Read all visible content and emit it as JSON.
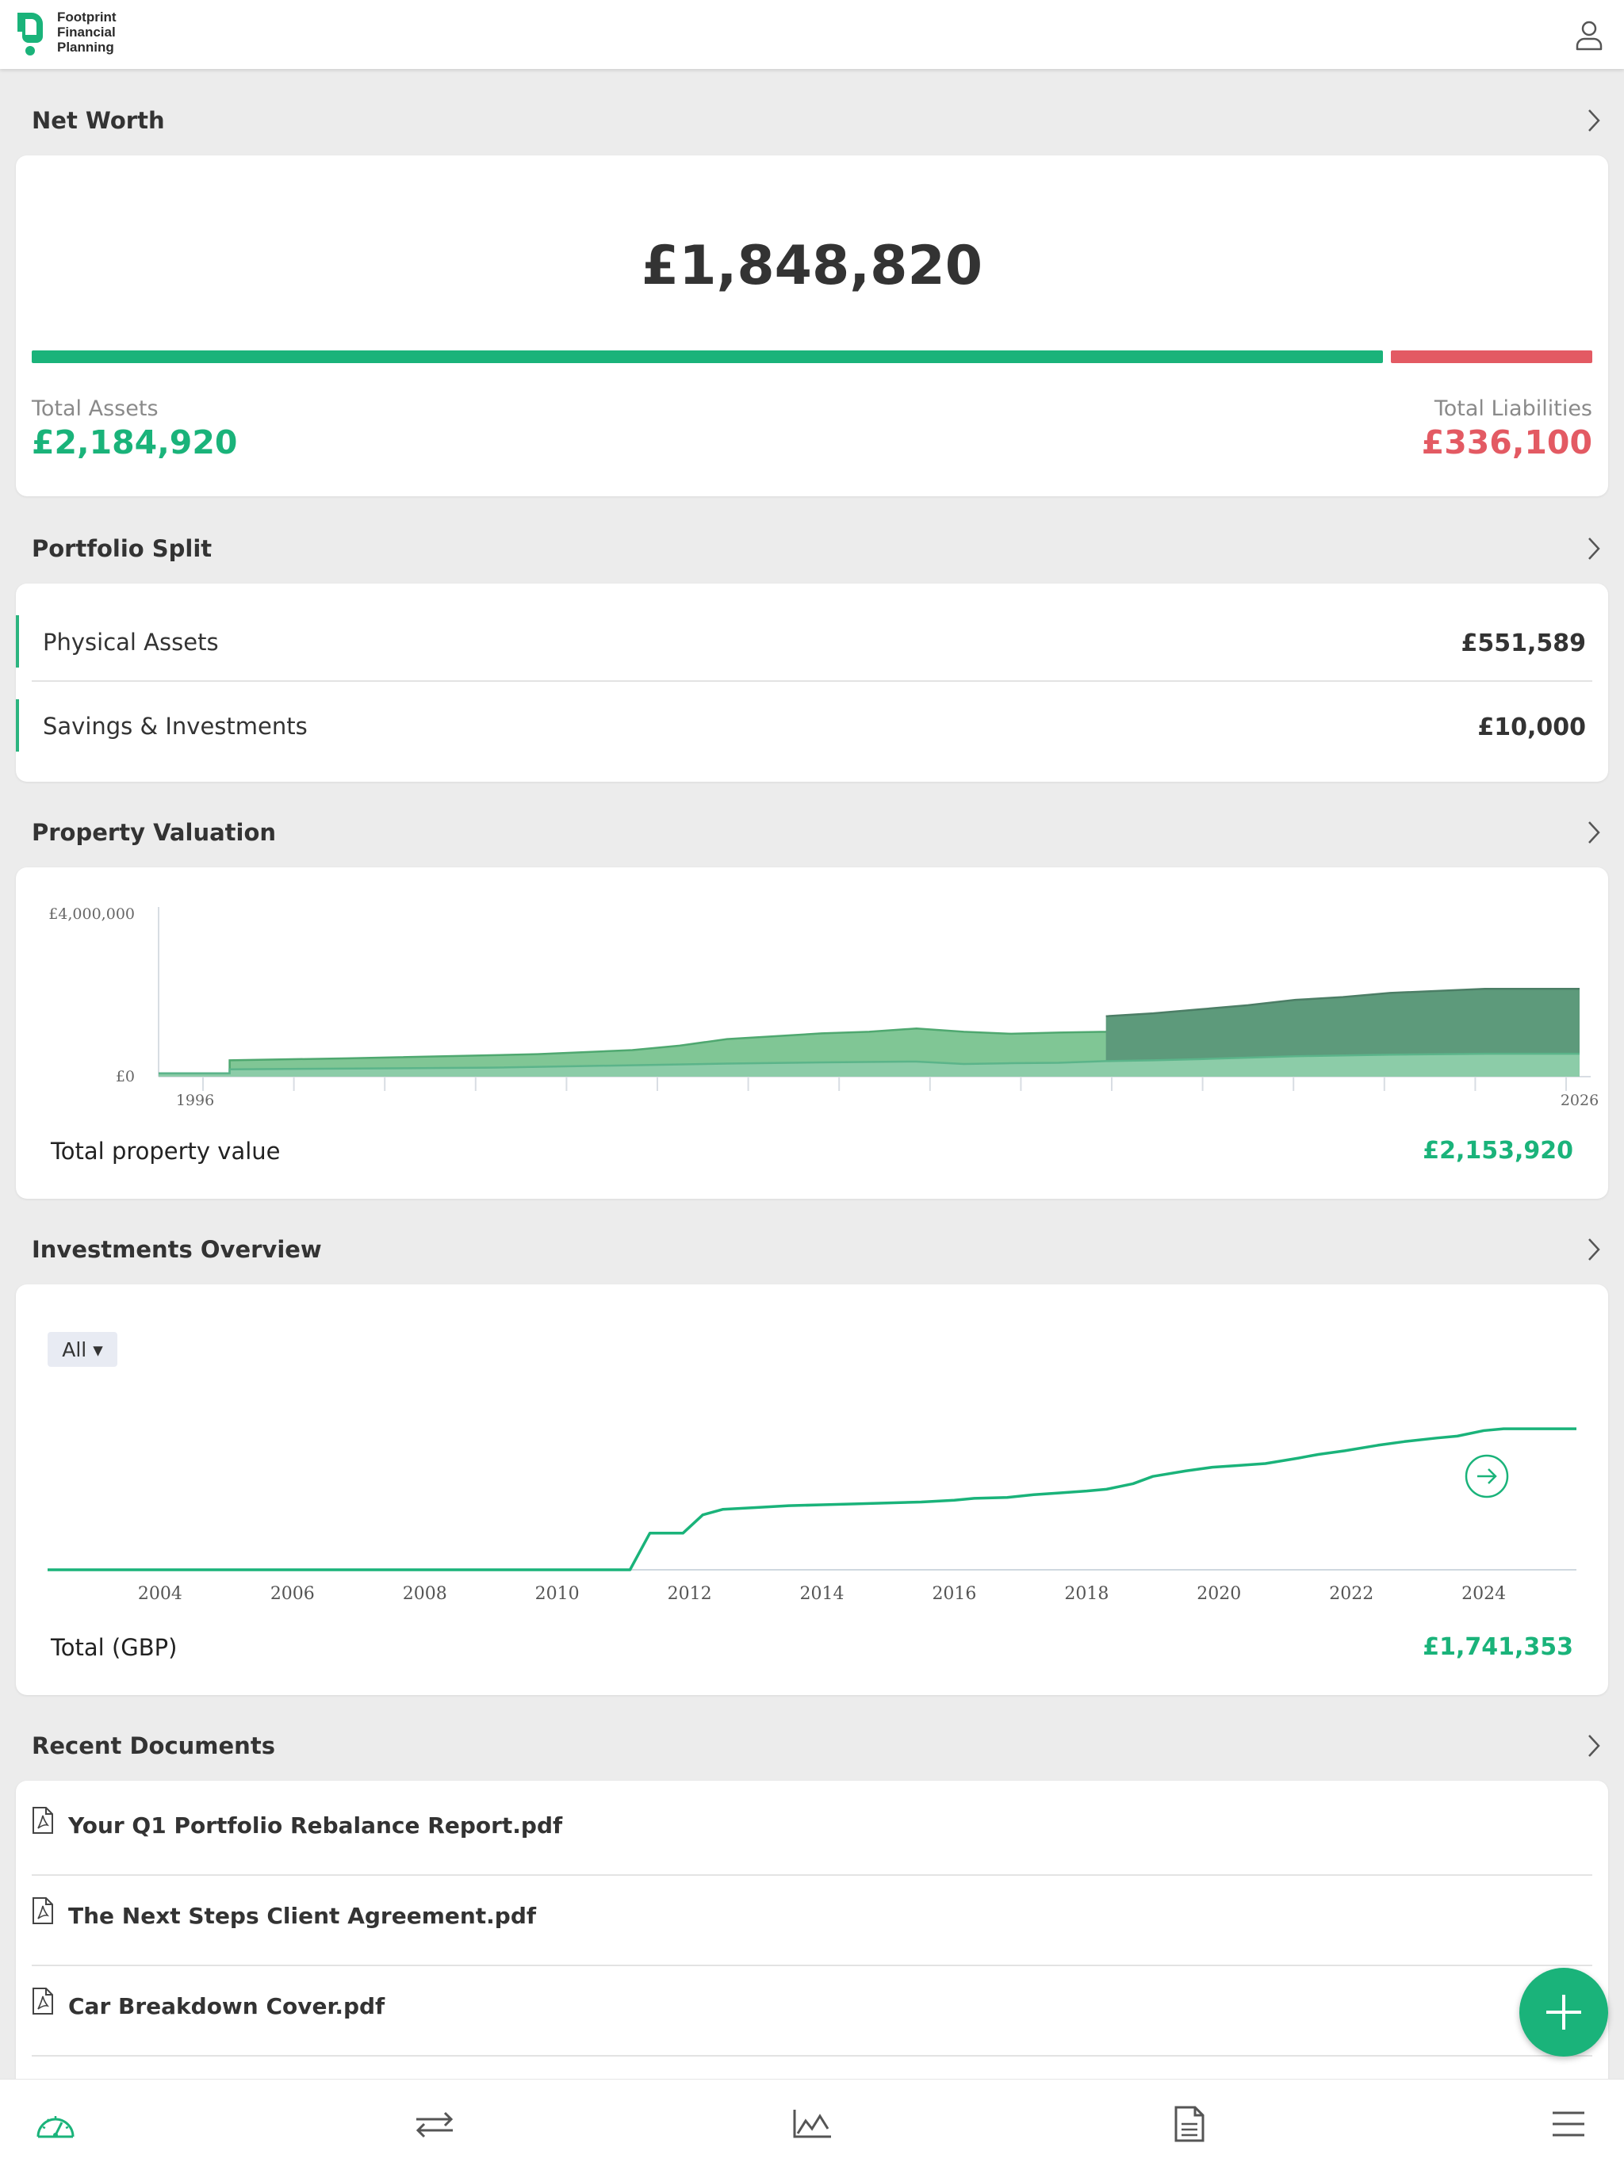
{
  "app": {
    "brand": [
      "Footprint",
      "Financial",
      "Planning"
    ],
    "colors": {
      "accent": "#1ab37a",
      "liability": "#e35a63",
      "area_mid": "#80c695",
      "area_top": "#5d9a7b",
      "area_base": "#8ccca8"
    }
  },
  "header": {
    "user_icon": "user-icon"
  },
  "net_worth": {
    "title": "Net Worth",
    "total": "£1,848,820",
    "assets_label": "Total Assets",
    "assets_value": "£2,184,920",
    "liabilities_label": "Total Liabilities",
    "liabilities_value": "£336,100",
    "assets_share": 0.867
  },
  "portfolio_split": {
    "title": "Portfolio Split",
    "items": [
      {
        "name": "Physical Assets",
        "value": "£551,589"
      },
      {
        "name": "Savings & Investments",
        "value": "£10,000"
      }
    ]
  },
  "property_valuation": {
    "title": "Property Valuation",
    "footer_label": "Total property value",
    "footer_value": "£2,153,920"
  },
  "investments_overview": {
    "title": "Investments Overview",
    "filter": "All ▾",
    "footer_label": "Total (GBP)",
    "footer_value": "£1,741,353"
  },
  "recent_documents": {
    "title": "Recent Documents",
    "items": [
      {
        "name": "Your Q1 Portfolio Rebalance Report.pdf"
      },
      {
        "name": "The Next Steps Client Agreement.pdf"
      },
      {
        "name": "Car Breakdown Cover.pdf"
      }
    ]
  },
  "bottom_nav": {
    "items": [
      {
        "icon": "dashboard-icon"
      },
      {
        "icon": "transfer-icon"
      },
      {
        "icon": "chart-icon"
      },
      {
        "icon": "document-icon"
      },
      {
        "icon": "menu-icon"
      }
    ]
  },
  "chart_data": [
    {
      "type": "area",
      "ylim": [
        0,
        4000000
      ],
      "xlim": [
        1996,
        2026
      ],
      "y_tick_labels": [
        "£4,000,000",
        "£0"
      ],
      "x_tick_labels": [
        "1996",
        "2026"
      ],
      "series": [
        {
          "x": [
            1996,
            1997.5,
            1997.5,
            2003,
            2006,
            2008,
            2010,
            2012,
            2013,
            2014,
            2015,
            2016,
            2017,
            2018,
            2020,
            2022,
            2024,
            2026
          ],
          "y": [
            80000,
            80000,
            180000,
            220000,
            280000,
            320000,
            350000,
            370000,
            310000,
            330000,
            340000,
            380000,
            400000,
            430000,
            500000,
            540000,
            560000,
            560000
          ]
        },
        {
          "x": [
            1996,
            1997.5,
            1997.5,
            2000,
            2004,
            2006,
            2007,
            2008,
            2010,
            2011,
            2012,
            2013,
            2014,
            2015,
            2016,
            2017,
            2018,
            2019,
            2020,
            2022,
            2024,
            2026
          ],
          "y": [
            80000,
            80000,
            400000,
            450000,
            550000,
            650000,
            760000,
            920000,
            1060000,
            1100000,
            1180000,
            1100000,
            1050000,
            1080000,
            1100000,
            1170000,
            1250000,
            1350000,
            1480000,
            1600000,
            1600000,
            1600000
          ]
        },
        {
          "x": [
            2016,
            2017,
            2018,
            2019,
            2020,
            2021,
            2022,
            2024,
            2026
          ],
          "y": [
            1480000,
            1550000,
            1650000,
            1750000,
            1880000,
            1950000,
            2050000,
            2150000,
            2150000
          ]
        }
      ]
    },
    {
      "type": "line",
      "x_tick_labels": [
        "2004",
        "2006",
        "2008",
        "2010",
        "2012",
        "2014",
        "2016",
        "2018",
        "2020",
        "2022",
        "2024"
      ],
      "xlim": [
        2002.3,
        2025.4
      ],
      "ylim": [
        0,
        2000000
      ],
      "series": [
        {
          "x": [
            2002.3,
            2011.1,
            2011.4,
            2011.9,
            2012.2,
            2012.5,
            2013.0,
            2013.5,
            2014.0,
            2014.5,
            2015.5,
            2016.0,
            2016.3,
            2016.8,
            2017.2,
            2017.6,
            2018.0,
            2018.3,
            2018.7,
            2019.0,
            2019.5,
            2019.9,
            2020.3,
            2020.7,
            2021.2,
            2021.5,
            2021.9,
            2022.4,
            2022.8,
            2023.3,
            2023.6,
            2024.0,
            2024.3,
            2024.6,
            2025.4
          ],
          "y": [
            0,
            0,
            200000,
            200000,
            300000,
            330000,
            340000,
            350000,
            355000,
            360000,
            370000,
            380000,
            390000,
            395000,
            410000,
            420000,
            430000,
            440000,
            470000,
            510000,
            540000,
            560000,
            570000,
            580000,
            610000,
            630000,
            650000,
            680000,
            700000,
            720000,
            730000,
            760000,
            770000,
            770000,
            770000
          ]
        }
      ]
    }
  ]
}
